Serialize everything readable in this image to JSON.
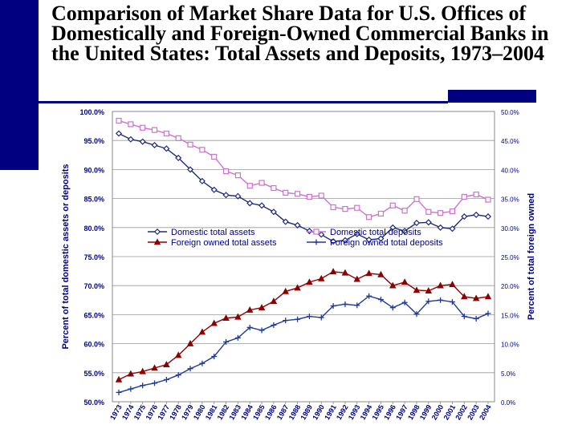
{
  "title": "Comparison of Market Share Data for U.S. Offices of Domestically and Foreign-Owned Commercial Banks in the United States: Total Assets and Deposits, 1973–2004",
  "chart_data": {
    "type": "line",
    "x": [
      "1973",
      "1974",
      "1975",
      "1976",
      "1977",
      "1978",
      "1979",
      "1980",
      "1981",
      "1982",
      "1983",
      "1984",
      "1985",
      "1986",
      "1987",
      "1988",
      "1989",
      "1990",
      "1991",
      "1992",
      "1993",
      "1994",
      "1995",
      "1996",
      "1997",
      "1998",
      "1999",
      "2000",
      "2001",
      "2002",
      "2003",
      "2004"
    ],
    "left_axis": {
      "label": "Percent of total domestic assets or deposits",
      "range": [
        50,
        100
      ],
      "ticks": [
        "100.0%",
        "95.0%",
        "90.0%",
        "85.0%",
        "80.0%",
        "75.0%",
        "70.0%",
        "65.0%",
        "60.0%",
        "55.0%",
        "50.0%"
      ]
    },
    "right_axis": {
      "label": "Percent of total foreign owned",
      "range": [
        0,
        50
      ],
      "ticks": [
        "50.0%",
        "45.0%",
        "40.0%",
        "35.0%",
        "30.0%",
        "25.0%",
        "20.0%",
        "15.0%",
        "10.0%",
        "5.0%",
        "0.0%"
      ]
    },
    "series": [
      {
        "name": "Domestic total assets",
        "axis": "left",
        "color": "#1f2a7a",
        "marker": "diamond",
        "values": [
          96.2,
          95.2,
          94.8,
          94.2,
          93.6,
          92.0,
          90.0,
          88.0,
          86.5,
          85.6,
          85.4,
          84.2,
          83.8,
          82.7,
          81.0,
          80.4,
          79.4,
          78.8,
          77.6,
          77.8,
          78.9,
          77.9,
          78.1,
          80.0,
          79.4,
          80.8,
          80.9,
          80.0,
          79.8,
          81.9,
          82.2,
          81.9
        ]
      },
      {
        "name": "Domestic total deposits",
        "axis": "left",
        "color": "#d070d0",
        "marker": "square",
        "values": [
          98.4,
          97.8,
          97.2,
          96.8,
          96.2,
          95.4,
          94.3,
          93.4,
          92.2,
          89.7,
          89.0,
          87.2,
          87.7,
          86.8,
          86.0,
          85.8,
          85.3,
          85.5,
          83.5,
          83.2,
          83.4,
          81.8,
          82.4,
          83.8,
          82.9,
          84.9,
          82.7,
          82.5,
          82.8,
          85.3,
          85.7,
          84.8
        ]
      },
      {
        "name": "Foreign owned total assets",
        "axis": "right",
        "color": "#8b0000",
        "marker": "triangle",
        "values": [
          3.8,
          4.8,
          5.2,
          5.8,
          6.4,
          8.0,
          10.0,
          12.0,
          13.5,
          14.4,
          14.6,
          15.8,
          16.2,
          17.3,
          19.0,
          19.6,
          20.6,
          21.2,
          22.4,
          22.2,
          21.1,
          22.1,
          21.9,
          20.0,
          20.6,
          19.2,
          19.1,
          20.0,
          20.2,
          18.1,
          17.8,
          18.1
        ]
      },
      {
        "name": "Foreign owned total deposits",
        "axis": "right",
        "color": "#1f3a9a",
        "marker": "cross",
        "values": [
          1.6,
          2.2,
          2.8,
          3.2,
          3.8,
          4.6,
          5.7,
          6.6,
          7.8,
          10.3,
          11.0,
          12.8,
          12.3,
          13.2,
          14.0,
          14.2,
          14.7,
          14.5,
          16.5,
          16.8,
          16.6,
          18.2,
          17.6,
          16.2,
          17.1,
          15.1,
          17.3,
          17.5,
          17.2,
          14.7,
          14.3,
          15.2
        ]
      }
    ]
  }
}
